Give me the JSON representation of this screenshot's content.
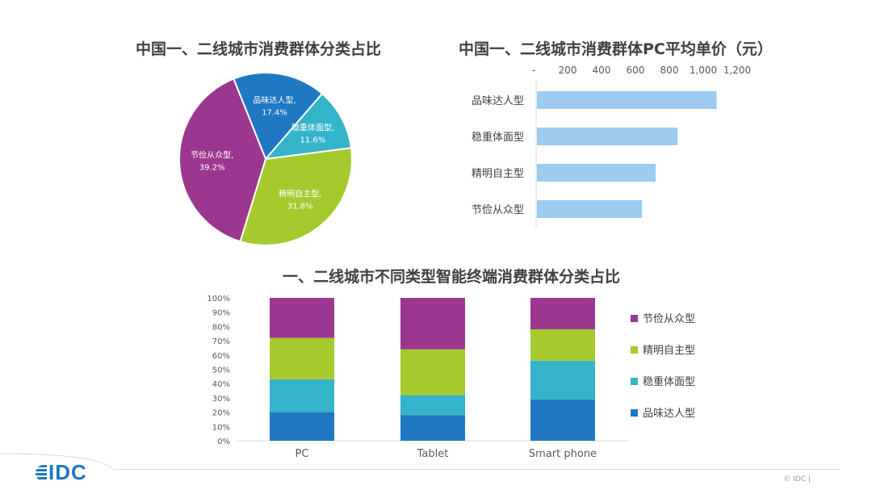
{
  "chart_data": [
    {
      "type": "pie",
      "title": "中国一、二线城市消费群体分类占比",
      "slices": [
        {
          "name": "品味达人型",
          "value": 17.4,
          "label": "17.4%",
          "color": "#1f78c1"
        },
        {
          "name": "稳重体面型",
          "value": 11.6,
          "label": "11.6%",
          "color": "#33b4c9"
        },
        {
          "name": "精明自主型",
          "value": 31.8,
          "label": "31.8%",
          "color": "#a6ca2e"
        },
        {
          "name": "节俭从众型",
          "value": 39.2,
          "label": "39.2%",
          "color": "#9b378f"
        }
      ]
    },
    {
      "type": "bar",
      "orientation": "horizontal",
      "title": "中国一、二线城市消费群体PC平均单价（元）",
      "categories": [
        "品味达人型",
        "稳重体面型",
        "精明自主型",
        "节俭从众型"
      ],
      "values": [
        1060,
        830,
        700,
        620
      ],
      "xlim": [
        0,
        1200
      ],
      "xticks": [
        "-",
        "200",
        "400",
        "600",
        "800",
        "1,000",
        "1,200"
      ],
      "tick_values": [
        0,
        200,
        400,
        600,
        800,
        1000,
        1200
      ],
      "color": "#9ccbef"
    },
    {
      "type": "bar",
      "stacked": true,
      "title": "一、二线城市不同类型智能终端消费群体分类占比",
      "categories": [
        "PC",
        "Tablet",
        "Smart phone"
      ],
      "ylim": [
        0,
        100
      ],
      "yticks": [
        "0%",
        "10%",
        "20%",
        "30%",
        "40%",
        "50%",
        "60%",
        "70%",
        "80%",
        "90%",
        "100%"
      ],
      "legend_position": "right",
      "series": [
        {
          "name": "品味达人型",
          "values": [
            20,
            18,
            29
          ],
          "color": "#1f78c1"
        },
        {
          "name": "稳重体面型",
          "values": [
            23,
            14,
            27
          ],
          "color": "#33b4c9"
        },
        {
          "name": "精明自主型",
          "values": [
            29,
            32,
            22
          ],
          "color": "#a6ca2e"
        },
        {
          "name": "节俭从众型",
          "values": [
            28,
            36,
            22
          ],
          "color": "#9b378f"
        }
      ]
    }
  ],
  "footer": {
    "logo": "IDC",
    "copyright": "© IDC |"
  }
}
